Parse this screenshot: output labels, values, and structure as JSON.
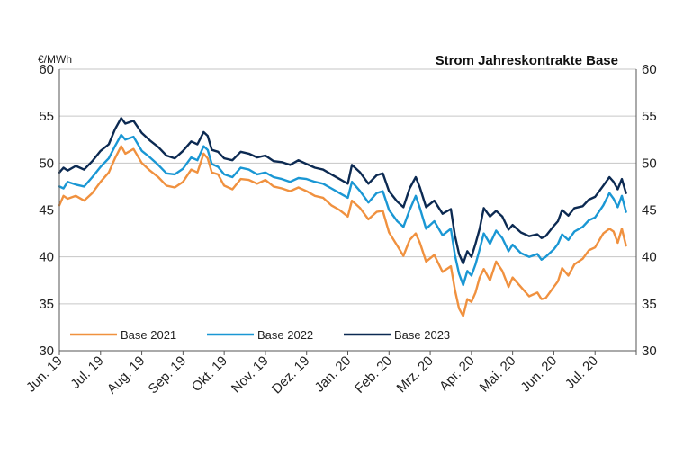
{
  "chart_data": {
    "type": "line",
    "title": "Strom Jahreskontrakte Base",
    "unit_label": "€/MWh",
    "ylim": [
      30,
      60
    ],
    "yticks": [
      "30",
      "35",
      "40",
      "45",
      "50",
      "55",
      "60"
    ],
    "grid": "horizontal",
    "legend": "bottom-left, inside plot",
    "x_labels": [
      "Jun. 19",
      "Jul. 19",
      "Aug. 19",
      "Sep. 19",
      "Okt. 19",
      "Nov. 19",
      "Dez. 19",
      "Jan. 20",
      "Feb. 20",
      "Mrz. 20",
      "Apr. 20",
      "Mai. 20",
      "Jun. 20",
      "Jul. 20"
    ],
    "series": [
      {
        "name": "Base 2021",
        "color": "#f0913f",
        "points": [
          [
            0,
            45.5
          ],
          [
            0.1,
            46.5
          ],
          [
            0.2,
            46.2
          ],
          [
            0.4,
            46.5
          ],
          [
            0.6,
            46
          ],
          [
            0.8,
            46.8
          ],
          [
            1.0,
            48
          ],
          [
            1.2,
            49
          ],
          [
            1.35,
            50.5
          ],
          [
            1.5,
            51.8
          ],
          [
            1.6,
            51
          ],
          [
            1.8,
            51.5
          ],
          [
            2.0,
            50
          ],
          [
            2.2,
            49.2
          ],
          [
            2.4,
            48.5
          ],
          [
            2.6,
            47.6
          ],
          [
            2.8,
            47.4
          ],
          [
            3.0,
            48
          ],
          [
            3.2,
            49.3
          ],
          [
            3.35,
            49
          ],
          [
            3.5,
            51
          ],
          [
            3.6,
            50.5
          ],
          [
            3.7,
            49
          ],
          [
            3.85,
            48.8
          ],
          [
            4.0,
            47.6
          ],
          [
            4.2,
            47.2
          ],
          [
            4.4,
            48.3
          ],
          [
            4.6,
            48.2
          ],
          [
            4.8,
            47.8
          ],
          [
            5.0,
            48.2
          ],
          [
            5.2,
            47.5
          ],
          [
            5.4,
            47.3
          ],
          [
            5.6,
            47
          ],
          [
            5.8,
            47.4
          ],
          [
            6.0,
            47
          ],
          [
            6.2,
            46.5
          ],
          [
            6.4,
            46.3
          ],
          [
            6.6,
            45.5
          ],
          [
            6.8,
            45
          ],
          [
            7.0,
            44.3
          ],
          [
            7.1,
            46
          ],
          [
            7.3,
            45.2
          ],
          [
            7.5,
            44
          ],
          [
            7.7,
            44.8
          ],
          [
            7.85,
            44.9
          ],
          [
            8.0,
            42.6
          ],
          [
            8.2,
            41.2
          ],
          [
            8.35,
            40.1
          ],
          [
            8.5,
            41.8
          ],
          [
            8.65,
            42.5
          ],
          [
            8.75,
            41.5
          ],
          [
            8.9,
            39.5
          ],
          [
            9.1,
            40.2
          ],
          [
            9.3,
            38.4
          ],
          [
            9.5,
            39
          ],
          [
            9.6,
            36.5
          ],
          [
            9.7,
            34.5
          ],
          [
            9.8,
            33.7
          ],
          [
            9.9,
            35.5
          ],
          [
            10.0,
            35.2
          ],
          [
            10.1,
            36.2
          ],
          [
            10.2,
            37.8
          ],
          [
            10.3,
            38.7
          ],
          [
            10.45,
            37.5
          ],
          [
            10.6,
            39.5
          ],
          [
            10.75,
            38.5
          ],
          [
            10.9,
            36.8
          ],
          [
            11.0,
            37.8
          ],
          [
            11.2,
            36.8
          ],
          [
            11.4,
            35.8
          ],
          [
            11.6,
            36.2
          ],
          [
            11.7,
            35.5
          ],
          [
            11.8,
            35.6
          ],
          [
            12.0,
            36.8
          ],
          [
            12.1,
            37.4
          ],
          [
            12.2,
            38.8
          ],
          [
            12.35,
            38
          ],
          [
            12.5,
            39.2
          ],
          [
            12.7,
            39.8
          ],
          [
            12.85,
            40.7
          ],
          [
            13.0,
            41
          ],
          [
            13.2,
            42.5
          ],
          [
            13.35,
            43
          ],
          [
            13.45,
            42.7
          ],
          [
            13.55,
            41.5
          ],
          [
            13.65,
            43
          ],
          [
            13.75,
            41.2
          ]
        ]
      },
      {
        "name": "Base 2022",
        "color": "#1a97d4",
        "points": [
          [
            0,
            47.5
          ],
          [
            0.1,
            47.3
          ],
          [
            0.2,
            48
          ],
          [
            0.4,
            47.7
          ],
          [
            0.6,
            47.5
          ],
          [
            0.8,
            48.5
          ],
          [
            1.0,
            49.6
          ],
          [
            1.2,
            50.5
          ],
          [
            1.35,
            51.8
          ],
          [
            1.5,
            53
          ],
          [
            1.6,
            52.5
          ],
          [
            1.8,
            52.8
          ],
          [
            2.0,
            51.3
          ],
          [
            2.2,
            50.6
          ],
          [
            2.4,
            49.8
          ],
          [
            2.6,
            48.9
          ],
          [
            2.8,
            48.8
          ],
          [
            3.0,
            49.4
          ],
          [
            3.2,
            50.6
          ],
          [
            3.35,
            50.3
          ],
          [
            3.5,
            51.8
          ],
          [
            3.6,
            51.4
          ],
          [
            3.7,
            49.9
          ],
          [
            3.85,
            49.6
          ],
          [
            4.0,
            48.8
          ],
          [
            4.2,
            48.5
          ],
          [
            4.4,
            49.5
          ],
          [
            4.6,
            49.3
          ],
          [
            4.8,
            48.8
          ],
          [
            5.0,
            49
          ],
          [
            5.2,
            48.5
          ],
          [
            5.4,
            48.3
          ],
          [
            5.6,
            48
          ],
          [
            5.8,
            48.4
          ],
          [
            6.0,
            48.3
          ],
          [
            6.2,
            48
          ],
          [
            6.4,
            47.8
          ],
          [
            6.6,
            47.3
          ],
          [
            6.8,
            46.8
          ],
          [
            7.0,
            46.3
          ],
          [
            7.1,
            48
          ],
          [
            7.3,
            47
          ],
          [
            7.5,
            45.8
          ],
          [
            7.7,
            46.8
          ],
          [
            7.85,
            47
          ],
          [
            8.0,
            45
          ],
          [
            8.2,
            43.8
          ],
          [
            8.35,
            43.2
          ],
          [
            8.5,
            45
          ],
          [
            8.65,
            46.5
          ],
          [
            8.75,
            45.2
          ],
          [
            8.9,
            43
          ],
          [
            9.1,
            43.8
          ],
          [
            9.3,
            42.3
          ],
          [
            9.5,
            43
          ],
          [
            9.6,
            40.2
          ],
          [
            9.7,
            38.2
          ],
          [
            9.8,
            37
          ],
          [
            9.9,
            38.5
          ],
          [
            10.0,
            38
          ],
          [
            10.1,
            39.2
          ],
          [
            10.2,
            40.8
          ],
          [
            10.3,
            42.5
          ],
          [
            10.45,
            41.4
          ],
          [
            10.6,
            42.8
          ],
          [
            10.75,
            42
          ],
          [
            10.9,
            40.6
          ],
          [
            11.0,
            41.3
          ],
          [
            11.2,
            40.4
          ],
          [
            11.4,
            40
          ],
          [
            11.6,
            40.3
          ],
          [
            11.7,
            39.7
          ],
          [
            11.8,
            40
          ],
          [
            12.0,
            40.8
          ],
          [
            12.1,
            41.4
          ],
          [
            12.2,
            42.4
          ],
          [
            12.35,
            41.8
          ],
          [
            12.5,
            42.7
          ],
          [
            12.7,
            43.2
          ],
          [
            12.85,
            43.9
          ],
          [
            13.0,
            44.2
          ],
          [
            13.2,
            45.5
          ],
          [
            13.35,
            46.8
          ],
          [
            13.45,
            46.2
          ],
          [
            13.55,
            45.3
          ],
          [
            13.65,
            46.5
          ],
          [
            13.75,
            44.8
          ]
        ]
      },
      {
        "name": "Base 2023",
        "color": "#0c2a52",
        "points": [
          [
            0,
            49
          ],
          [
            0.1,
            49.5
          ],
          [
            0.2,
            49.2
          ],
          [
            0.4,
            49.7
          ],
          [
            0.6,
            49.3
          ],
          [
            0.8,
            50.2
          ],
          [
            1.0,
            51.3
          ],
          [
            1.2,
            52
          ],
          [
            1.35,
            53.6
          ],
          [
            1.5,
            54.8
          ],
          [
            1.6,
            54.2
          ],
          [
            1.8,
            54.5
          ],
          [
            2.0,
            53.2
          ],
          [
            2.2,
            52.4
          ],
          [
            2.4,
            51.7
          ],
          [
            2.6,
            50.8
          ],
          [
            2.8,
            50.5
          ],
          [
            3.0,
            51.3
          ],
          [
            3.2,
            52.3
          ],
          [
            3.35,
            52
          ],
          [
            3.5,
            53.3
          ],
          [
            3.6,
            52.9
          ],
          [
            3.7,
            51.4
          ],
          [
            3.85,
            51.2
          ],
          [
            4.0,
            50.5
          ],
          [
            4.2,
            50.3
          ],
          [
            4.4,
            51.2
          ],
          [
            4.6,
            51
          ],
          [
            4.8,
            50.6
          ],
          [
            5.0,
            50.8
          ],
          [
            5.2,
            50.2
          ],
          [
            5.4,
            50.1
          ],
          [
            5.6,
            49.8
          ],
          [
            5.8,
            50.3
          ],
          [
            6.0,
            49.9
          ],
          [
            6.2,
            49.5
          ],
          [
            6.4,
            49.3
          ],
          [
            6.6,
            48.8
          ],
          [
            6.8,
            48.3
          ],
          [
            7.0,
            47.8
          ],
          [
            7.1,
            49.8
          ],
          [
            7.3,
            49
          ],
          [
            7.5,
            47.8
          ],
          [
            7.7,
            48.7
          ],
          [
            7.85,
            48.9
          ],
          [
            8.0,
            47
          ],
          [
            8.2,
            45.9
          ],
          [
            8.35,
            45.3
          ],
          [
            8.5,
            47.3
          ],
          [
            8.65,
            48.5
          ],
          [
            8.75,
            47.4
          ],
          [
            8.9,
            45.3
          ],
          [
            9.1,
            46
          ],
          [
            9.3,
            44.6
          ],
          [
            9.5,
            45.1
          ],
          [
            9.6,
            42.3
          ],
          [
            9.7,
            40.3
          ],
          [
            9.8,
            39.3
          ],
          [
            9.9,
            40.6
          ],
          [
            10.0,
            40
          ],
          [
            10.1,
            41.4
          ],
          [
            10.2,
            43
          ],
          [
            10.3,
            45.2
          ],
          [
            10.45,
            44.3
          ],
          [
            10.6,
            44.9
          ],
          [
            10.75,
            44.3
          ],
          [
            10.9,
            42.9
          ],
          [
            11.0,
            43.4
          ],
          [
            11.2,
            42.6
          ],
          [
            11.4,
            42.2
          ],
          [
            11.6,
            42.4
          ],
          [
            11.7,
            42
          ],
          [
            11.8,
            42.2
          ],
          [
            12.0,
            43.3
          ],
          [
            12.1,
            43.8
          ],
          [
            12.2,
            45
          ],
          [
            12.35,
            44.4
          ],
          [
            12.5,
            45.2
          ],
          [
            12.7,
            45.4
          ],
          [
            12.85,
            46.1
          ],
          [
            13.0,
            46.4
          ],
          [
            13.2,
            47.6
          ],
          [
            13.35,
            48.5
          ],
          [
            13.45,
            48
          ],
          [
            13.55,
            47.2
          ],
          [
            13.65,
            48.3
          ],
          [
            13.75,
            46.8
          ]
        ]
      }
    ]
  }
}
